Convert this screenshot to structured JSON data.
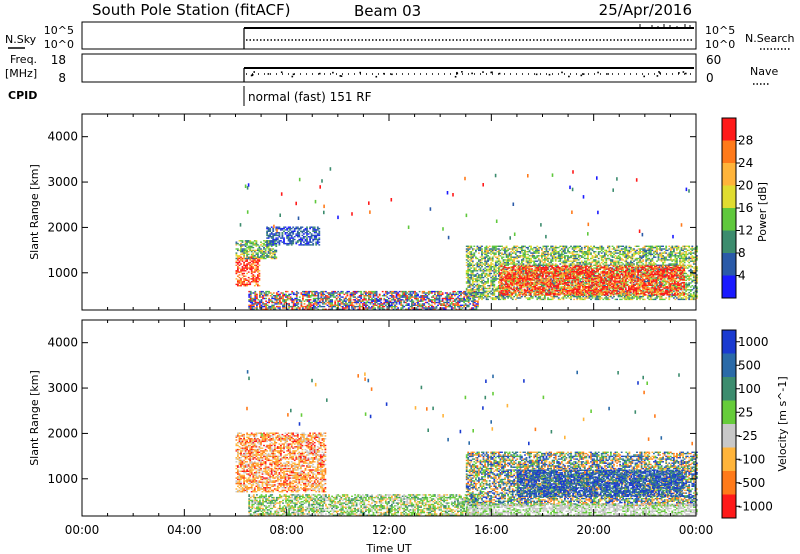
{
  "header": {
    "station": "South Pole Station (fitACF)",
    "beam": "Beam 03",
    "date": "25/Apr/2016"
  },
  "strip": {
    "nsky_label": "N.Sky",
    "nsearch_label": "N.Search",
    "noise_left_ticks": [
      "10^5",
      "10^0"
    ],
    "noise_right_ticks": [
      "10^5",
      "10^0"
    ],
    "freq_label": "Freq.",
    "freq_unit": "[MHz]",
    "freq_ticks": [
      "18",
      "8"
    ],
    "nave_label": "Nave",
    "nave_ticks": [
      "60",
      "0"
    ],
    "cpid_label": "CPID",
    "cpid_text": "normal (fast) 151 RF"
  },
  "chart_data": [
    {
      "type": "heatmap",
      "name": "power",
      "ylabel": "Slant Range [km]",
      "xlabel": "",
      "ylim": [
        180,
        4500
      ],
      "y_ticks": [
        1000,
        2000,
        3000,
        4000
      ],
      "xlim_hours": [
        0,
        24
      ],
      "colorbar_label": "Power [dB]",
      "colorbar_ticks": [
        "28",
        "24",
        "20",
        "16",
        "12",
        "8",
        "4"
      ],
      "colorbar_colors": [
        "#ff1a1a",
        "#ff7a1a",
        "#ffb43a",
        "#e0dc30",
        "#5fc83c",
        "#3c8c6e",
        "#2a5aa8",
        "#1a1aff"
      ],
      "data_start_hour": 6.0,
      "echo_regions": [
        {
          "t0": 6.0,
          "t1": 6.9,
          "r0": 700,
          "r1": 1350,
          "level": "high"
        },
        {
          "t0": 6.0,
          "t1": 7.6,
          "r0": 1300,
          "r1": 1700,
          "level": "mid"
        },
        {
          "t0": 7.2,
          "t1": 9.3,
          "r0": 1600,
          "r1": 2000,
          "level": "low"
        },
        {
          "t0": 6.5,
          "t1": 15.5,
          "r0": 180,
          "r1": 600,
          "level": "mixed"
        },
        {
          "t0": 15.0,
          "t1": 24.0,
          "r0": 400,
          "r1": 1600,
          "level": "mid"
        },
        {
          "t0": 16.3,
          "t1": 23.5,
          "r0": 500,
          "r1": 1150,
          "level": "high"
        }
      ]
    },
    {
      "type": "heatmap",
      "name": "velocity",
      "ylabel": "Slant Range [km]",
      "xlabel": "Time UT",
      "ylim": [
        180,
        4500
      ],
      "y_ticks": [
        1000,
        2000,
        3000,
        4000
      ],
      "x_ticks": [
        "00:00",
        "04:00",
        "08:00",
        "12:00",
        "16:00",
        "20:00",
        "00:00"
      ],
      "xlim_hours": [
        0,
        24
      ],
      "colorbar_label": "Velocity [m s^-1]",
      "colorbar_ticks": [
        "1000",
        "500",
        "100",
        "25",
        "-25",
        "-100",
        "-500",
        "-1000"
      ],
      "colorbar_colors": [
        "#1a3ad0",
        "#2a6aa8",
        "#3c8c6e",
        "#66cc3a",
        "#c8c8c8",
        "#ffb43a",
        "#ff7a1a",
        "#ff1a1a"
      ],
      "data_start_hour": 6.0,
      "echo_regions": [
        {
          "t0": 6.0,
          "t1": 9.5,
          "r0": 700,
          "r1": 2000,
          "level": "negative"
        },
        {
          "t0": 6.5,
          "t1": 15.5,
          "r0": 180,
          "r1": 650,
          "level": "low"
        },
        {
          "t0": 15.0,
          "t1": 24.0,
          "r0": 400,
          "r1": 1600,
          "level": "mixed"
        },
        {
          "t0": 17.0,
          "t1": 23.5,
          "r0": 600,
          "r1": 1200,
          "level": "positive"
        },
        {
          "t0": 15.0,
          "t1": 24.0,
          "r0": 180,
          "r1": 450,
          "level": "ground"
        }
      ]
    }
  ]
}
